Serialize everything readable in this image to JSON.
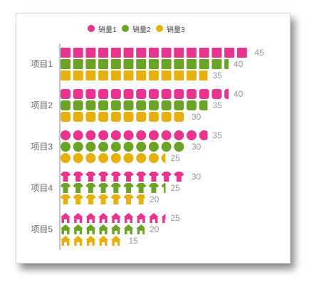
{
  "chart_data": {
    "type": "bar",
    "title": "",
    "categories": [
      "项目1",
      "项目2",
      "项目3",
      "项目4",
      "项目5"
    ],
    "series": [
      {
        "name": "销量1",
        "color": "#e8338f",
        "symbol": "rounded-square-small-radius",
        "values": [
          45,
          40,
          35,
          30,
          25
        ]
      },
      {
        "name": "销量2",
        "color": "#6aa325",
        "symbol": "rounded-square",
        "values": [
          40,
          35,
          30,
          25,
          20
        ]
      },
      {
        "name": "销量3",
        "color": "#e6b00f",
        "symbol": "square",
        "values": [
          35,
          30,
          25,
          20,
          15
        ]
      }
    ],
    "category_symbols": [
      "square",
      "rounded-square",
      "circle",
      "shirt",
      "house"
    ],
    "legend": "top-center",
    "xlim": [
      0,
      45
    ]
  }
}
